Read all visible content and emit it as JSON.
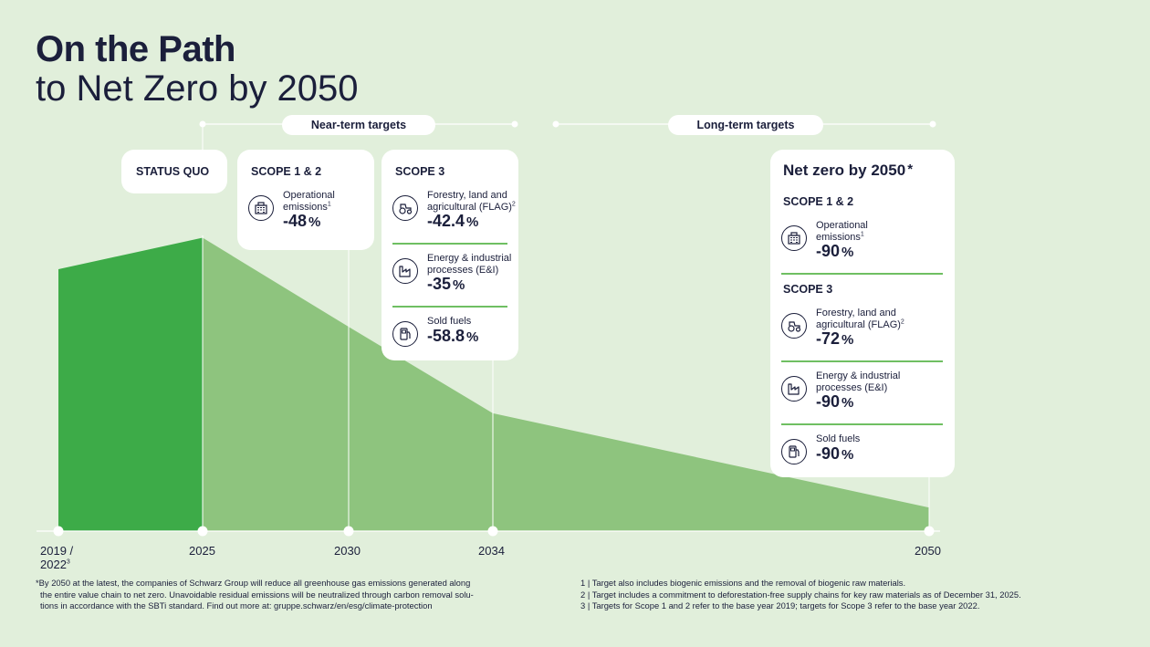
{
  "title": {
    "line1": "On the Path",
    "line2": "to Net Zero by 2050"
  },
  "pills": {
    "near": "Near-term targets",
    "long": "Long-term targets"
  },
  "status_quo": "STATUS QUO",
  "card_2025": {
    "heading": "SCOPE 1 & 2",
    "items": [
      {
        "label1": "Operational",
        "label2": "emissions",
        "sup": "1",
        "value": "-48",
        "unit": "%",
        "icon": "building-icon"
      }
    ]
  },
  "card_2030": {
    "heading": "SCOPE 3",
    "items": [
      {
        "label1": "Forestry, land and",
        "label2": "agricultural (FLAG)",
        "sup": "2",
        "value": "-42.4",
        "unit": "%",
        "icon": "tractor-icon"
      },
      {
        "label1": "Energy & industrial",
        "label2": "processes (E&I)",
        "sup": "",
        "value": "-35",
        "unit": "%",
        "icon": "factory-icon"
      },
      {
        "label1": "Sold fuels",
        "label2": "",
        "sup": "",
        "value": "-58.8",
        "unit": "%",
        "icon": "fuel-pump-icon"
      }
    ]
  },
  "card_2050": {
    "heading": "Net zero by 2050",
    "heading_star": "*",
    "scope12": "SCOPE 1 & 2",
    "scope3": "SCOPE 3",
    "items": [
      {
        "label1": "Operational",
        "label2": "emissions",
        "sup": "1",
        "value": "-90",
        "unit": "%",
        "icon": "building-icon"
      },
      {
        "label1": "Forestry, land and",
        "label2": "agricultural (FLAG)",
        "sup": "2",
        "value": "-72",
        "unit": "%",
        "icon": "tractor-icon"
      },
      {
        "label1": "Energy & industrial",
        "label2": "processes (E&I)",
        "sup": "",
        "value": "-90",
        "unit": "%",
        "icon": "factory-icon"
      },
      {
        "label1": "Sold fuels",
        "label2": "",
        "sup": "",
        "value": "-90",
        "unit": "%",
        "icon": "fuel-pump-icon"
      }
    ]
  },
  "axis": {
    "first_line1": "2019 /",
    "first_line2": "2022",
    "first_sup": "3",
    "t2025": "2025",
    "t2030": "2030",
    "t2034": "2034",
    "t2050": "2050"
  },
  "footnotes": {
    "left": [
      "*By 2050 at the latest, the companies of Schwarz Group will reduce all greenhouse gas emissions generated along",
      "the entire value chain to net zero. Unavoidable residual emissions will be neutralized through carbon removal solu-",
      "tions in accordance with the SBTi standard. Find out more at: gruppe.schwarz/en/esg/climate-protection"
    ],
    "right": [
      "1 | Target also includes biogenic emissions and the removal of biogenic raw materials.",
      "2 | Target includes a commitment to deforestation-free supply chains for key raw materials as of December 31, 2025.",
      "3 | Targets for Scope 1 and 2 refer to the base year 2019; targets for Scope 3 refer to the base year 2022."
    ]
  },
  "colors": {
    "background": "#e1efdb",
    "dark_green": "#3dab48",
    "light_green": "#8ec47e",
    "navy": "#1b1f3b",
    "separator": "#6fbf62"
  },
  "chart_data": {
    "type": "area",
    "x": [
      2019,
      2025,
      2030,
      2034,
      2050
    ],
    "series": [
      {
        "values": [
          100,
          112,
          78,
          45,
          9
        ]
      }
    ],
    "xlabel": "",
    "ylabel": ""
  }
}
